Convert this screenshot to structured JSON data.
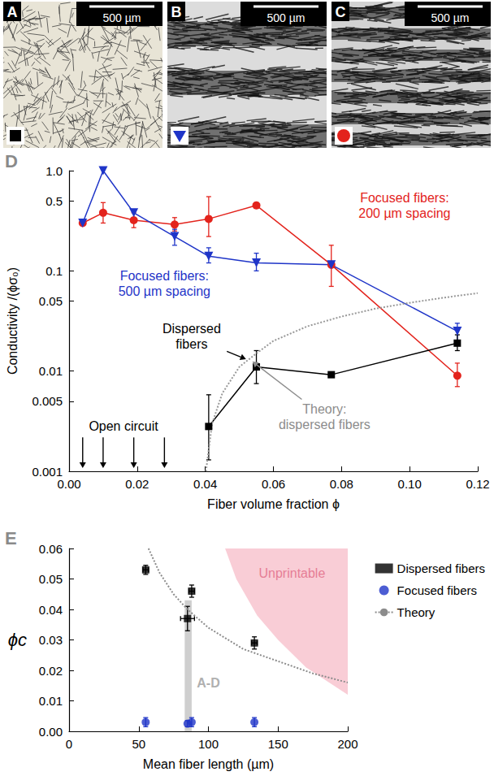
{
  "images": [
    {
      "letter": "A",
      "scale_bar": "500 µm",
      "marker": "square",
      "color": "#000000"
    },
    {
      "letter": "B",
      "scale_bar": "500 µm",
      "marker": "triangle_down",
      "color": "#1f35c8"
    },
    {
      "letter": "C",
      "scale_bar": "500 µm",
      "marker": "circle",
      "color": "#e3231c"
    }
  ],
  "chart_data": [
    {
      "panel": "D",
      "type": "line",
      "xlabel": "Fiber volume fraction ϕ",
      "ylabel": "Conductivity /(ϕσ₀)",
      "log": "y",
      "grid": false,
      "xlim": [
        0,
        0.12
      ],
      "xticks": [
        {
          "value": 0,
          "label": "0.00"
        },
        0.02,
        0.04,
        0.06,
        0.08,
        {
          "value": 0.1,
          "label": "0.10"
        },
        0.12
      ],
      "ylim": [
        0.001,
        1
      ],
      "yticks": [
        0.001,
        0.005,
        0.01,
        0.05,
        0.1,
        0.5,
        {
          "value": 1,
          "label": "1.0"
        }
      ],
      "series": [
        {
          "type": "line",
          "marker": "circle",
          "color": "#e3231c",
          "x": [
            0.004,
            0.01,
            0.019,
            0.031,
            0.041,
            0.055,
            0.077,
            0.114
          ],
          "values": [
            0.3,
            0.38,
            0.32,
            0.29,
            0.33,
            0.45,
            0.115,
            0.009
          ],
          "y_low": [
            null,
            0.3,
            0.27,
            0.25,
            0.22,
            0.42,
            0.07,
            0.007
          ],
          "y_high": [
            null,
            0.48,
            0.38,
            0.34,
            0.55,
            0.48,
            0.18,
            0.012
          ]
        },
        {
          "type": "line",
          "marker": "triangle_down",
          "color": "#1f35c8",
          "x": [
            0.004,
            0.01,
            0.019,
            0.031,
            0.041,
            0.055,
            0.077,
            0.114
          ],
          "values": [
            0.3,
            1.0,
            0.38,
            0.22,
            0.14,
            0.12,
            0.115,
            0.025
          ],
          "y_low": [
            null,
            null,
            null,
            0.18,
            0.12,
            0.1,
            null,
            0.02
          ],
          "y_high": [
            null,
            null,
            null,
            0.26,
            0.17,
            0.15,
            null,
            0.03
          ]
        },
        {
          "type": "line",
          "marker": "square",
          "color": "#000000",
          "x": [
            0.041,
            0.055,
            0.077,
            0.114
          ],
          "values": [
            0.0028,
            0.011,
            0.0092,
            0.019
          ],
          "y_low": [
            0.0013,
            0.0075,
            null,
            0.016
          ],
          "y_high": [
            0.0058,
            0.016,
            null,
            0.023
          ]
        },
        {
          "type": "line",
          "marker": "none",
          "line_style": "dotted",
          "color": "#999999",
          "x": [
            0.0402,
            0.042,
            0.045,
            0.05,
            0.055,
            0.06,
            0.07,
            0.08,
            0.09,
            0.1,
            0.11,
            0.12
          ],
          "values": [
            0.001,
            0.003,
            0.006,
            0.011,
            0.015,
            0.02,
            0.028,
            0.035,
            0.042,
            0.048,
            0.054,
            0.06
          ]
        }
      ],
      "annotations": [
        {
          "text": "Focused fibers:\n200 µm spacing",
          "color": "#e3231c",
          "x": 0.0985,
          "y": 0.45
        },
        {
          "text": "Focused fibers:\n500 µm spacing",
          "color": "#1f35c8",
          "x": 0.028,
          "y": 0.075
        },
        {
          "text": "Dispersed\nfibers",
          "color": "#000000",
          "x": 0.036,
          "y": 0.022,
          "arrow_to": [
            0.0535,
            0.0125
          ]
        },
        {
          "text": "Theory:\ndispersed fibers",
          "color": "#8c8c8c",
          "x": 0.075,
          "y": 0.0035,
          "arrow_to": [
            0.0525,
            0.0135
          ]
        },
        {
          "text": "Open circuit",
          "color": "#000000",
          "x": 0.016,
          "y": 0.0028,
          "arrows_x": [
            0.004,
            0.01,
            0.019,
            0.028
          ]
        }
      ]
    },
    {
      "panel": "E",
      "type": "scatter",
      "xlabel": "Mean fiber length (µm)",
      "ylabel": "ϕc",
      "grid": false,
      "legend": "right",
      "xlim": [
        0,
        200
      ],
      "xticks": [
        0,
        50,
        100,
        150,
        200
      ],
      "ylim": [
        0,
        0.06
      ],
      "yticks": [
        {
          "value": 0,
          "label": "0.00"
        },
        0.01,
        0.02,
        0.03,
        0.04,
        0.05,
        0.06
      ],
      "series": [
        {
          "name": "Dispersed fibers",
          "type": "scatter",
          "marker": "square",
          "color": "#000000",
          "x": [
            55,
            85,
            88,
            133
          ],
          "values": [
            0.053,
            0.037,
            0.046,
            0.029
          ],
          "y_low": [
            0.0515,
            0.033,
            0.044,
            0.027
          ],
          "y_high": [
            0.0545,
            0.041,
            0.048,
            0.031
          ],
          "x_low": [
            53,
            80,
            86,
            131
          ],
          "x_high": [
            57,
            90,
            90,
            135
          ]
        },
        {
          "name": "Focused fibers",
          "type": "scatter",
          "marker": "circle",
          "color": "#1f35c8",
          "x": [
            55,
            85,
            88,
            133
          ],
          "values": [
            0.003,
            0.0025,
            0.003,
            0.003
          ],
          "y_low": [
            0.0015,
            0.0015,
            0.0015,
            0.0015
          ],
          "y_high": [
            0.0045,
            0.0035,
            0.0045,
            0.0045
          ]
        },
        {
          "name": "Theory",
          "type": "line",
          "marker": "none",
          "line_style": "dotted",
          "color": "#8c8c8c",
          "x": [
            57,
            65,
            75,
            85,
            100,
            125,
            150,
            175,
            200
          ],
          "values": [
            0.06,
            0.052,
            0.045,
            0.04,
            0.034,
            0.027,
            0.023,
            0.019,
            0.016
          ]
        }
      ],
      "regions": [
        {
          "text": "Unprintable",
          "color": "#f9cdd6",
          "text_color": "#e67d95",
          "boundary": [
            [
              112,
              0.06
            ],
            [
              120,
              0.05
            ],
            [
              135,
              0.038
            ],
            [
              150,
              0.03
            ],
            [
              170,
              0.021
            ],
            [
              200,
              0.012
            ]
          ],
          "x": 160,
          "y": 0.052
        }
      ],
      "bands": [
        {
          "text": "A-D",
          "color": "#cfcfcf",
          "text_color": "#b0b0b0",
          "x": [
            83,
            88
          ],
          "y": [
            0,
            0.043
          ],
          "text_x": 100,
          "text_y": 0.016
        }
      ]
    }
  ]
}
